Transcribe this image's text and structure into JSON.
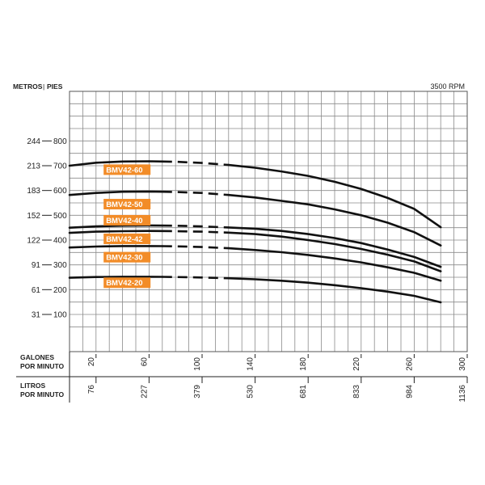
{
  "chart_data": {
    "type": "line",
    "rpm_label": "3500 RPM",
    "y_axis_labels": {
      "metros": "METROS",
      "pies": "PIES"
    },
    "x_axis_labels": {
      "galones": [
        "GALONES",
        "POR MINUTO"
      ],
      "litros": [
        "LITROS",
        "POR MINUTO"
      ]
    },
    "y_ticks": [
      {
        "metros": "31",
        "pies": "100",
        "value": 100
      },
      {
        "metros": "61",
        "pies": "200",
        "value": 200
      },
      {
        "metros": "91",
        "pies": "300",
        "value": 300
      },
      {
        "metros": "122",
        "pies": "400",
        "value": 400
      },
      {
        "metros": "152",
        "pies": "500",
        "value": 500
      },
      {
        "metros": "183",
        "pies": "600",
        "value": 600
      },
      {
        "metros": "213",
        "pies": "700",
        "value": 700
      },
      {
        "metros": "244",
        "pies": "800",
        "value": 800
      }
    ],
    "x_ticks": [
      {
        "gpm": "20",
        "lpm": "76",
        "value": 20
      },
      {
        "gpm": "60",
        "lpm": "227",
        "value": 60
      },
      {
        "gpm": "100",
        "lpm": "379",
        "value": 100
      },
      {
        "gpm": "140",
        "lpm": "530",
        "value": 140
      },
      {
        "gpm": "180",
        "lpm": "681",
        "value": 180
      },
      {
        "gpm": "220",
        "lpm": "833",
        "value": 220
      },
      {
        "gpm": "260",
        "lpm": "984",
        "value": 260
      },
      {
        "gpm": "300",
        "lpm": "1136",
        "value": 300
      }
    ],
    "xlim": [
      0,
      300
    ],
    "ylim": [
      -50,
      1000
    ],
    "grid": true,
    "dashed_range": [
      70,
      120
    ],
    "label_color": "#F28C28",
    "line_color": "#111111",
    "series": [
      {
        "name": "BMV42-60",
        "label_at": [
          30,
          684
        ],
        "points": [
          [
            0,
            700
          ],
          [
            20,
            712
          ],
          [
            40,
            717
          ],
          [
            60,
            718
          ],
          [
            80,
            716
          ],
          [
            100,
            711
          ],
          [
            120,
            703
          ],
          [
            140,
            692
          ],
          [
            160,
            677
          ],
          [
            180,
            659
          ],
          [
            200,
            635
          ],
          [
            220,
            606
          ],
          [
            240,
            570
          ],
          [
            260,
            526
          ],
          [
            280,
            452
          ]
        ]
      },
      {
        "name": "BMV42-50",
        "label_at": [
          30,
          545
        ],
        "points": [
          [
            0,
            582
          ],
          [
            20,
            590
          ],
          [
            40,
            595
          ],
          [
            60,
            596
          ],
          [
            80,
            594
          ],
          [
            100,
            590
          ],
          [
            120,
            582
          ],
          [
            140,
            572
          ],
          [
            160,
            558
          ],
          [
            180,
            544
          ],
          [
            200,
            524
          ],
          [
            220,
            500
          ],
          [
            240,
            470
          ],
          [
            260,
            432
          ],
          [
            280,
            378
          ]
        ]
      },
      {
        "name": "BMV42-40",
        "label_at": [
          30,
          480
        ],
        "points": [
          [
            0,
            450
          ],
          [
            20,
            455
          ],
          [
            40,
            458
          ],
          [
            60,
            459
          ],
          [
            80,
            458
          ],
          [
            100,
            455
          ],
          [
            120,
            451
          ],
          [
            140,
            446
          ],
          [
            160,
            437
          ],
          [
            180,
            424
          ],
          [
            200,
            408
          ],
          [
            220,
            388
          ],
          [
            240,
            362
          ],
          [
            260,
            332
          ],
          [
            280,
            292
          ]
        ]
      },
      {
        "name": "BMV42-42",
        "label_at": [
          30,
          405
        ],
        "points": [
          [
            0,
            429
          ],
          [
            20,
            434
          ],
          [
            40,
            436
          ],
          [
            60,
            437
          ],
          [
            80,
            436
          ],
          [
            100,
            434
          ],
          [
            120,
            430
          ],
          [
            140,
            424
          ],
          [
            160,
            414
          ],
          [
            180,
            400
          ],
          [
            200,
            384
          ],
          [
            220,
            364
          ],
          [
            240,
            341
          ],
          [
            260,
            314
          ],
          [
            280,
            274
          ]
        ]
      },
      {
        "name": "BMV42-30",
        "label_at": [
          30,
          331
        ],
        "points": [
          [
            0,
            370
          ],
          [
            20,
            374
          ],
          [
            40,
            376
          ],
          [
            60,
            376
          ],
          [
            80,
            375
          ],
          [
            100,
            372
          ],
          [
            120,
            367
          ],
          [
            140,
            360
          ],
          [
            160,
            351
          ],
          [
            180,
            340
          ],
          [
            200,
            326
          ],
          [
            220,
            310
          ],
          [
            240,
            290
          ],
          [
            260,
            268
          ],
          [
            280,
            236
          ]
        ]
      },
      {
        "name": "BMV42-20",
        "label_at": [
          30,
          228
        ],
        "points": [
          [
            0,
            248
          ],
          [
            20,
            251
          ],
          [
            40,
            252
          ],
          [
            60,
            252
          ],
          [
            80,
            251
          ],
          [
            100,
            249
          ],
          [
            120,
            246
          ],
          [
            140,
            242
          ],
          [
            160,
            236
          ],
          [
            180,
            228
          ],
          [
            200,
            218
          ],
          [
            220,
            206
          ],
          [
            240,
            192
          ],
          [
            260,
            175
          ],
          [
            280,
            149
          ]
        ]
      }
    ]
  }
}
